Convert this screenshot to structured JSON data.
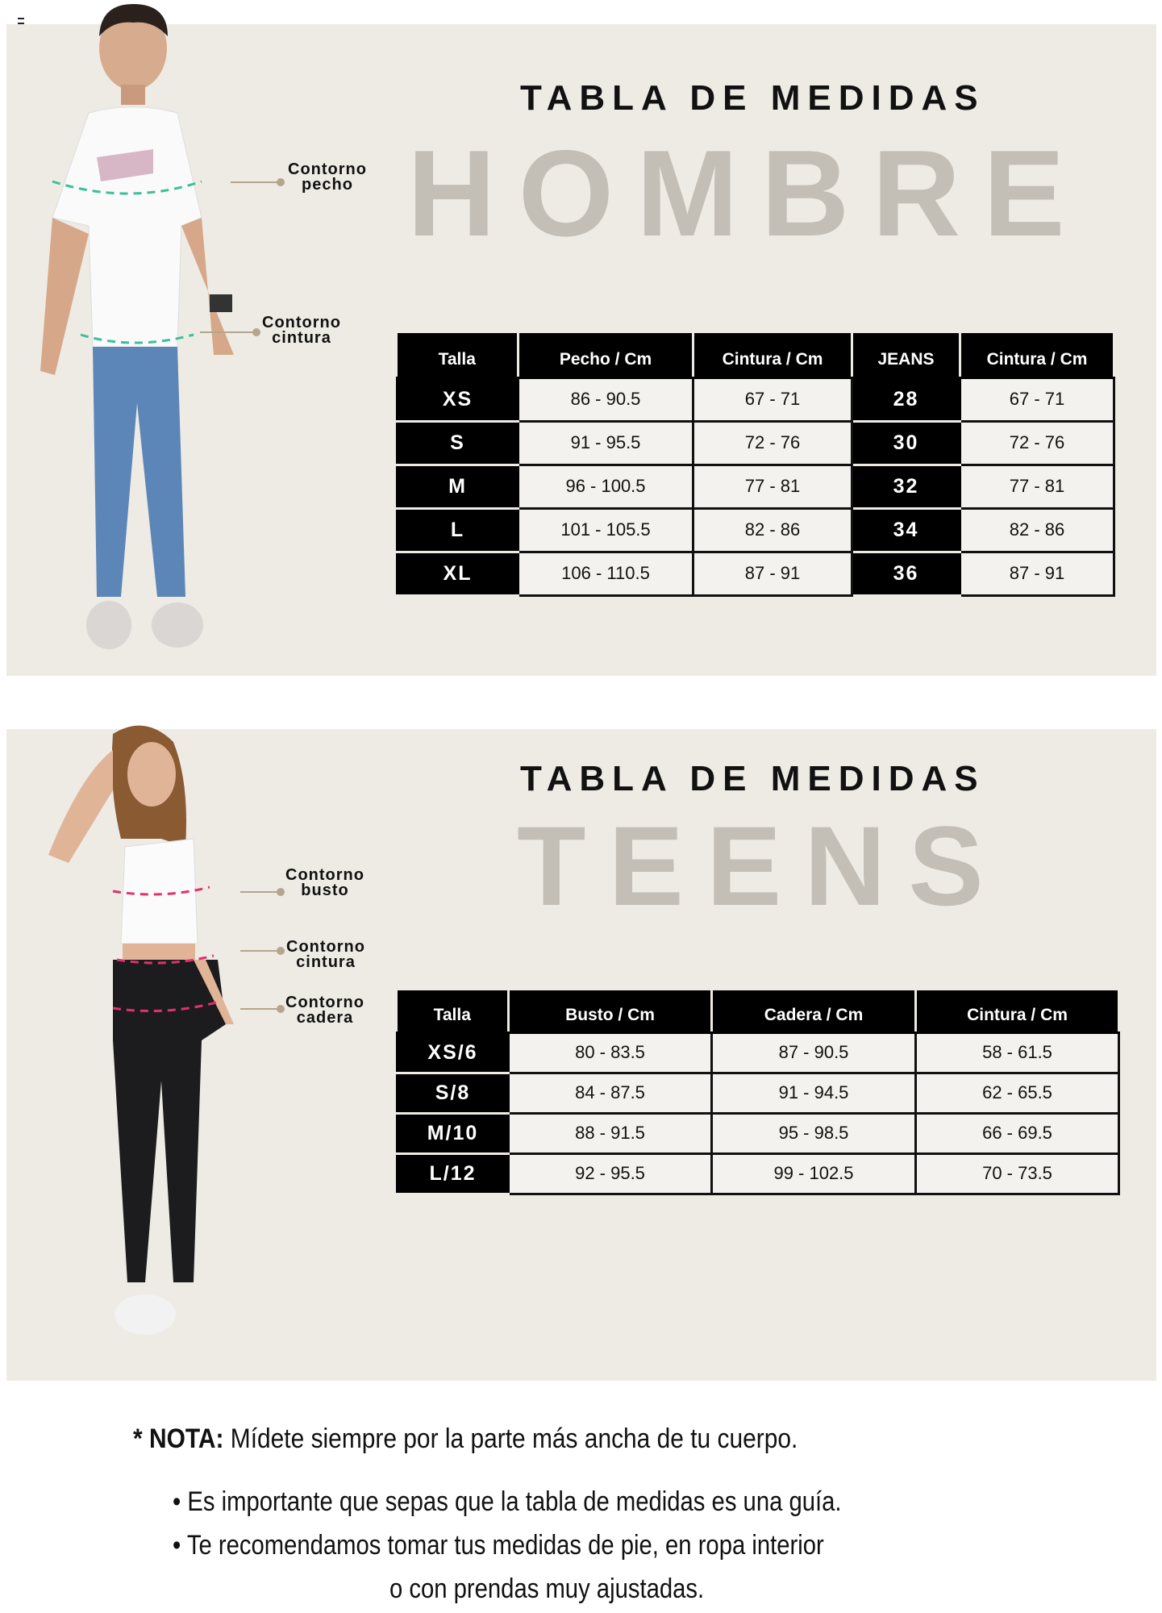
{
  "hombre": {
    "title": "TABLA DE MEDIDAS",
    "background_word": "HOMBRE",
    "labels": [
      "Contorno pecho",
      "Contorno cintura"
    ],
    "labels_lines": [
      [
        "Contorno",
        "pecho"
      ],
      [
        "Contorno",
        "cintura"
      ]
    ],
    "measure_line_color": "#3dbf9a",
    "columns": [
      "Talla",
      "Pecho / Cm",
      "Cintura / Cm",
      "JEANS",
      "Cintura / Cm"
    ],
    "rows": [
      [
        "XS",
        "86 - 90.5",
        "67 - 71",
        "28",
        "67 - 71"
      ],
      [
        "S",
        "91 - 95.5",
        "72 - 76",
        "30",
        "72 - 76"
      ],
      [
        "M",
        "96 - 100.5",
        "77 - 81",
        "32",
        "77 - 81"
      ],
      [
        "L",
        "101 - 105.5",
        "82 - 86",
        "34",
        "82 - 86"
      ],
      [
        "XL",
        "106 - 110.5",
        "87 - 91",
        "36",
        "87 - 91"
      ]
    ]
  },
  "teens": {
    "title": "TABLA DE MEDIDAS",
    "background_word": "TEENS",
    "labels_lines": [
      [
        "Contorno",
        "busto"
      ],
      [
        "Contorno",
        "cintura"
      ],
      [
        "Contorno",
        "cadera"
      ]
    ],
    "measure_line_color": "#e0306e",
    "columns": [
      "Talla",
      "Busto / Cm",
      "Cadera / Cm",
      "Cintura / Cm"
    ],
    "rows": [
      [
        "XS/6",
        "80 - 83.5",
        "87 - 90.5",
        "58 - 61.5"
      ],
      [
        "S/8",
        "84 - 87.5",
        "91 - 94.5",
        "62 - 65.5"
      ],
      [
        "M/10",
        "88 - 91.5",
        "95 - 98.5",
        "66 - 69.5"
      ],
      [
        "L/12",
        "92 - 95.5",
        "99 - 102.5",
        "70 - 73.5"
      ]
    ]
  },
  "notes": {
    "nota_label": "* NOTA:",
    "nota_text": " Mídete siempre por la parte más ancha de tu cuerpo.",
    "bullets": [
      "• Es importante que sepas que la tabla de medidas es una guía.",
      "• Te recomendamos tomar tus medidas de pie, en ropa interior",
      "o con prendas muy ajustadas."
    ]
  }
}
